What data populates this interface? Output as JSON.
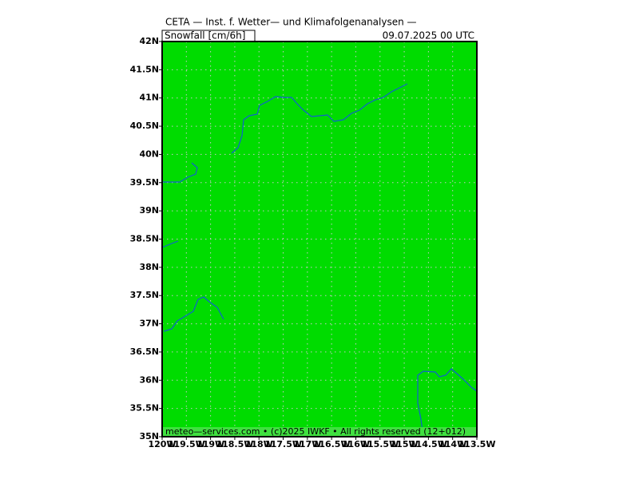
{
  "map": {
    "title": "CETA — Inst. f. Wetter— und Klimafolgenanalysen —",
    "subtitle_left": "Snowfall [cm/6h]",
    "subtitle_right": "09.07.2025 00 UTC",
    "footer": "meteo—services.com • (c)2025 IWKF • All rights reserved (12+012)",
    "lat_range": [
      35,
      42
    ],
    "lon_range": [
      -120,
      -113.5
    ],
    "lat_ticks": [
      {
        "value": 35,
        "label": "35N"
      },
      {
        "value": 35.5,
        "label": "35.5N"
      },
      {
        "value": 36,
        "label": "36N"
      },
      {
        "value": 36.5,
        "label": "36.5N"
      },
      {
        "value": 37,
        "label": "37N"
      },
      {
        "value": 37.5,
        "label": "37.5N"
      },
      {
        "value": 38,
        "label": "38N"
      },
      {
        "value": 38.5,
        "label": "38.5N"
      },
      {
        "value": 39,
        "label": "39N"
      },
      {
        "value": 39.5,
        "label": "39.5N"
      },
      {
        "value": 40,
        "label": "40N"
      },
      {
        "value": 40.5,
        "label": "40.5N"
      },
      {
        "value": 41,
        "label": "41N"
      },
      {
        "value": 41.5,
        "label": "41.5N"
      },
      {
        "value": 42,
        "label": "42N"
      }
    ],
    "lon_ticks": [
      {
        "value": -120,
        "label": "120W"
      },
      {
        "value": -119.5,
        "label": "119.5W"
      },
      {
        "value": -119,
        "label": "119W"
      },
      {
        "value": -118.5,
        "label": "118.5W"
      },
      {
        "value": -118,
        "label": "118W"
      },
      {
        "value": -117.5,
        "label": "117.5W"
      },
      {
        "value": -117,
        "label": "117W"
      },
      {
        "value": -116.5,
        "label": "116.5W"
      },
      {
        "value": -116,
        "label": "116W"
      },
      {
        "value": -115.5,
        "label": "115.5W"
      },
      {
        "value": -115,
        "label": "115W"
      },
      {
        "value": -114.5,
        "label": "114.5W"
      },
      {
        "value": -114,
        "label": "114W"
      },
      {
        "value": -113.5,
        "label": "113.5W"
      }
    ]
  }
}
